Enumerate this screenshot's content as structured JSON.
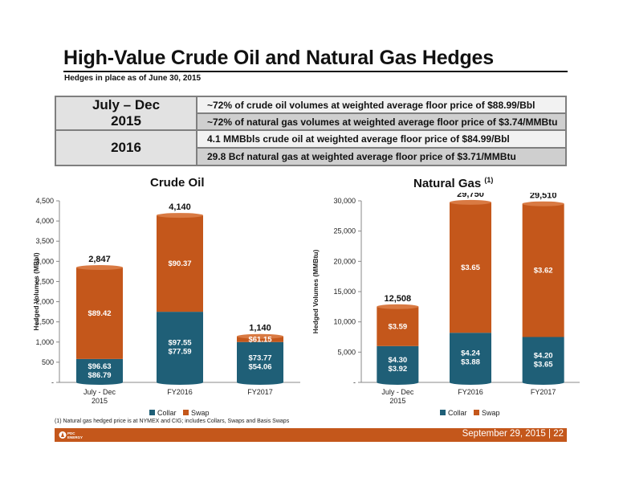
{
  "header": {
    "title": "High-Value Crude Oil and Natural Gas Hedges",
    "subtitle": "Hedges in place as of June 30, 2015"
  },
  "summary_table": {
    "period1": "July – Dec 2015",
    "period1_line1": "~72% of crude oil volumes at weighted average floor price of $88.99/Bbl",
    "period1_line2": "~72% of natural gas volumes at weighted average floor price of $3.74/MMBtu",
    "period2": "2016",
    "period2_line1": "4.1 MMBbls crude oil at weighted average floor price of $84.99/Bbl",
    "period2_line2": "29.8 Bcf natural gas at weighted average floor price of $3.71/MMBtu"
  },
  "colors": {
    "collar": "#1f5f77",
    "swap": "#c4571b",
    "footer": "#c4571b"
  },
  "chart_data": [
    {
      "type": "bar",
      "stacked": true,
      "title": "Crude Oil",
      "ylabel": "Hedged Volumes (MBbl)",
      "ylim": [
        0,
        4500
      ],
      "yticks": [
        "-",
        "500",
        "1,000",
        "1,500",
        "2,000",
        "2,500",
        "3,000",
        "3,500",
        "4,000",
        "4,500"
      ],
      "categories": [
        "July - Dec 2015",
        "FY2016",
        "FY2017"
      ],
      "series": [
        {
          "name": "Collar",
          "values": [
            580,
            1750,
            1000
          ],
          "labels": [
            "$96.63\n$86.79",
            "$97.55\n$77.59",
            "$73.77\n$54.06"
          ]
        },
        {
          "name": "Swap",
          "values": [
            2267,
            2390,
            140
          ],
          "labels": [
            "$89.42",
            "$90.37",
            "$61.15"
          ]
        }
      ],
      "totals": [
        "2,847",
        "4,140",
        "1,140"
      ],
      "legend": "bottom"
    },
    {
      "type": "bar",
      "stacked": true,
      "title": "Natural Gas",
      "title_note": "(1)",
      "ylabel": "Hedged Volumes (MMBtu)",
      "ylim": [
        0,
        30000
      ],
      "yticks": [
        "-",
        "5,000",
        "10,000",
        "15,000",
        "20,000",
        "25,000",
        "30,000"
      ],
      "categories": [
        "July - Dec 2015",
        "FY2016",
        "FY2017"
      ],
      "series": [
        {
          "name": "Collar",
          "values": [
            6000,
            8200,
            7500
          ],
          "labels": [
            "$4.30\n$3.92",
            "$4.24\n$3.88",
            "$4.20\n$3.65"
          ]
        },
        {
          "name": "Swap",
          "values": [
            6508,
            21550,
            22010
          ],
          "labels": [
            "$3.59",
            "$3.65",
            "$3.62"
          ]
        }
      ],
      "totals": [
        "12,508",
        "29,750",
        "29,510"
      ],
      "legend": "bottom"
    }
  ],
  "footnote": "(1)    Natural gas hedged price is at NYMEX and CIG; includes Collars, Swaps and Basis Swaps",
  "footer": {
    "logo_text": "PDC ENERGY",
    "date": "September 29, 2015  |  22"
  }
}
